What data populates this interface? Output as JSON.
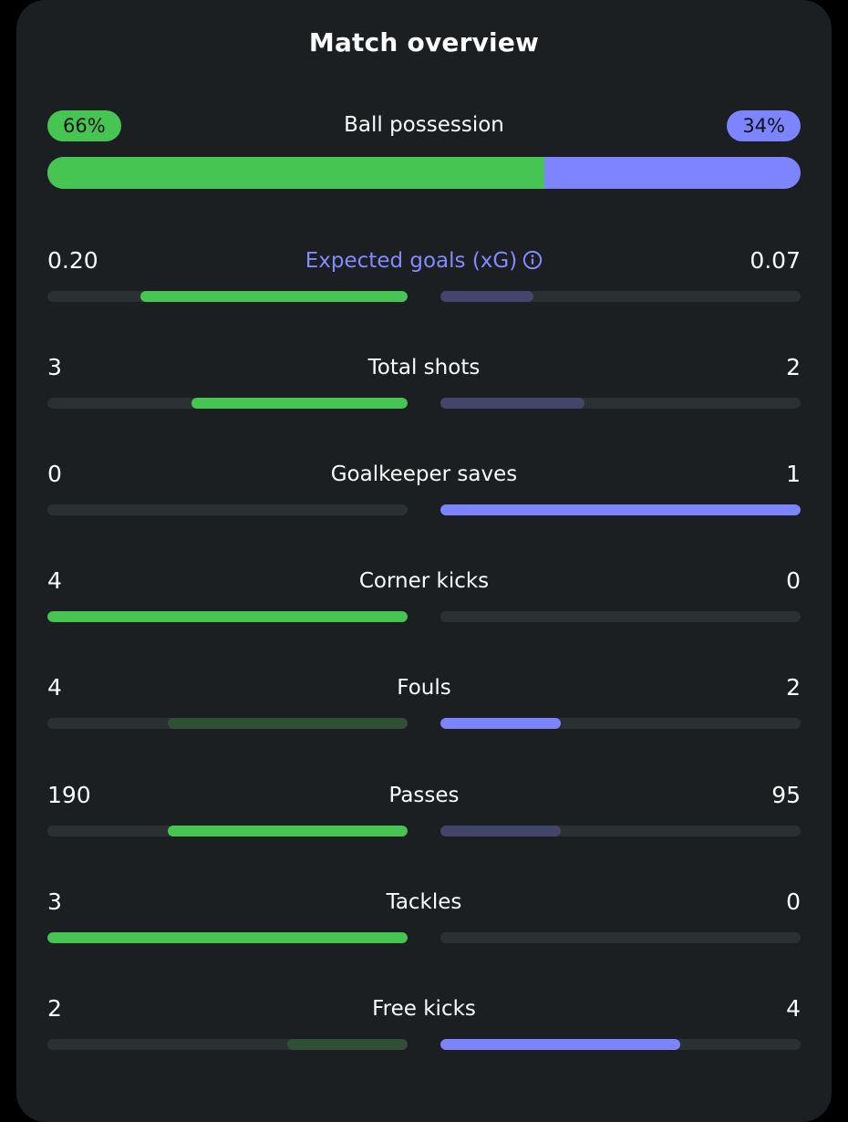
{
  "title": "Match overview",
  "colors": {
    "home": "#46c553",
    "away": "#7c84ff",
    "home_dim": "#2f5034",
    "away_dim": "#42466a",
    "track": "#2b3033",
    "accent": "#838aff"
  },
  "possession": {
    "label": "Ball possession",
    "home_text": "66%",
    "away_text": "34%",
    "home_fraction": 0.66
  },
  "stats": [
    {
      "label": "Expected goals (xG)",
      "home": "0.20",
      "away": "0.07",
      "home_num": 0.2,
      "away_num": 0.07,
      "info_icon": "info-circle-icon",
      "accent": true
    },
    {
      "label": "Total shots",
      "home": "3",
      "away": "2",
      "home_num": 3,
      "away_num": 2
    },
    {
      "label": "Goalkeeper saves",
      "home": "0",
      "away": "1",
      "home_num": 0,
      "away_num": 1
    },
    {
      "label": "Corner kicks",
      "home": "4",
      "away": "0",
      "home_num": 4,
      "away_num": 0
    },
    {
      "label": "Fouls",
      "home": "4",
      "away": "2",
      "home_num": 4,
      "away_num": 2,
      "inverse": true
    },
    {
      "label": "Passes",
      "home": "190",
      "away": "95",
      "home_num": 190,
      "away_num": 95
    },
    {
      "label": "Tackles",
      "home": "3",
      "away": "0",
      "home_num": 3,
      "away_num": 0
    },
    {
      "label": "Free kicks",
      "home": "2",
      "away": "4",
      "home_num": 2,
      "away_num": 4
    }
  ]
}
